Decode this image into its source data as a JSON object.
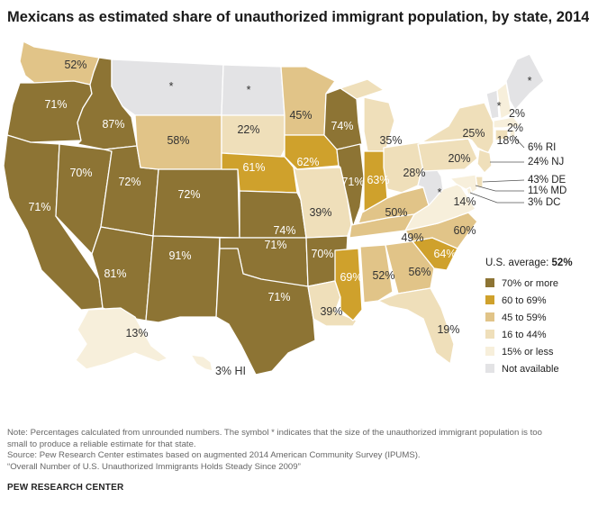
{
  "title": "Mexicans as estimated share of unauthorized immigrant population, by state, 2014",
  "colors": {
    "c70": "#8d7434",
    "c60": "#cfa12c",
    "c45": "#e1c488",
    "c16": "#efdfba",
    "c15": "#f7efdb",
    "na": "#e3e3e5"
  },
  "legend": {
    "avg_label": "U.S. average:",
    "avg_value": "52%",
    "items": [
      {
        "label": "70% or more",
        "key": "c70"
      },
      {
        "label": "60 to 69%",
        "key": "c60"
      },
      {
        "label": "45 to 59%",
        "key": "c45"
      },
      {
        "label": "16 to 44%",
        "key": "c16"
      },
      {
        "label": "15% or less",
        "key": "c15"
      },
      {
        "label": "Not available",
        "key": "na"
      }
    ]
  },
  "states": [
    {
      "abbr": "WA",
      "label": "52%",
      "bin": "c45"
    },
    {
      "abbr": "OR",
      "label": "71%",
      "bin": "c70"
    },
    {
      "abbr": "CA",
      "label": "71%",
      "bin": "c70"
    },
    {
      "abbr": "ID",
      "label": "87%",
      "bin": "c70"
    },
    {
      "abbr": "NV",
      "label": "70%",
      "bin": "c70"
    },
    {
      "abbr": "UT",
      "label": "72%",
      "bin": "c70"
    },
    {
      "abbr": "AZ",
      "label": "81%",
      "bin": "c70"
    },
    {
      "abbr": "MT",
      "label": "*",
      "bin": "na"
    },
    {
      "abbr": "WY",
      "label": "58%",
      "bin": "c45"
    },
    {
      "abbr": "CO",
      "label": "72%",
      "bin": "c70"
    },
    {
      "abbr": "NM",
      "label": "91%",
      "bin": "c70"
    },
    {
      "abbr": "ND",
      "label": "*",
      "bin": "na"
    },
    {
      "abbr": "SD",
      "label": "22%",
      "bin": "c16"
    },
    {
      "abbr": "NE",
      "label": "61%",
      "bin": "c60"
    },
    {
      "abbr": "KS",
      "label": "74%",
      "bin": "c70"
    },
    {
      "abbr": "OK",
      "label": "71%",
      "bin": "c70"
    },
    {
      "abbr": "TX",
      "label": "71%",
      "bin": "c70"
    },
    {
      "abbr": "MN",
      "label": "45%",
      "bin": "c45"
    },
    {
      "abbr": "IA",
      "label": "62%",
      "bin": "c60"
    },
    {
      "abbr": "MO",
      "label": "39%",
      "bin": "c16"
    },
    {
      "abbr": "AR",
      "label": "70%",
      "bin": "c70"
    },
    {
      "abbr": "LA",
      "label": "39%",
      "bin": "c16"
    },
    {
      "abbr": "WI",
      "label": "74%",
      "bin": "c70"
    },
    {
      "abbr": "IL",
      "label": "71%",
      "bin": "c70"
    },
    {
      "abbr": "MI",
      "label": "35%",
      "bin": "c16"
    },
    {
      "abbr": "IN",
      "label": "63%",
      "bin": "c60"
    },
    {
      "abbr": "OH",
      "label": "28%",
      "bin": "c16"
    },
    {
      "abbr": "KY",
      "label": "50%",
      "bin": "c45"
    },
    {
      "abbr": "TN",
      "label": "49%",
      "bin": "c45"
    },
    {
      "abbr": "MS",
      "label": "69%",
      "bin": "c60"
    },
    {
      "abbr": "AL",
      "label": "52%",
      "bin": "c45"
    },
    {
      "abbr": "GA",
      "label": "56%",
      "bin": "c45"
    },
    {
      "abbr": "FL",
      "label": "19%",
      "bin": "c16"
    },
    {
      "abbr": "SC",
      "label": "64%",
      "bin": "c60"
    },
    {
      "abbr": "NC",
      "label": "60%",
      "bin": "c45"
    },
    {
      "abbr": "VA",
      "label": "14%",
      "bin": "c15"
    },
    {
      "abbr": "WV",
      "label": "*",
      "bin": "na"
    },
    {
      "abbr": "PA",
      "label": "20%",
      "bin": "c16"
    },
    {
      "abbr": "NY",
      "label": "25%",
      "bin": "c16"
    },
    {
      "abbr": "VT",
      "label": "*",
      "bin": "na"
    },
    {
      "abbr": "NH",
      "label": "2%",
      "bin": "c15"
    },
    {
      "abbr": "ME",
      "label": "*",
      "bin": "na"
    },
    {
      "abbr": "MA",
      "label": "2%",
      "bin": "c15"
    },
    {
      "abbr": "CT",
      "label": "18%",
      "bin": "c16"
    },
    {
      "abbr": "AK",
      "label": "13%",
      "bin": "c15"
    },
    {
      "abbr": "HI",
      "label": "3% HI",
      "bin": "c15"
    }
  ],
  "callouts": [
    {
      "abbr": "RI",
      "label": "6% RI",
      "bin": "c15"
    },
    {
      "abbr": "NJ",
      "label": "24% NJ",
      "bin": "c16"
    },
    {
      "abbr": "DE",
      "label": "43% DE",
      "bin": "c16"
    },
    {
      "abbr": "MD",
      "label": "11% MD",
      "bin": "c15"
    },
    {
      "abbr": "DC",
      "label": "3% DC",
      "bin": "c15"
    }
  ],
  "notes": {
    "line1": "Note: Percentages calculated from unrounded numbers. The symbol * indicates that the size of the unauthorized immigrant population is too",
    "line2": "small to produce a reliable estimate for that state.",
    "line3": "Source: Pew Research Center estimates based on augmented 2014 American Community Survey (IPUMS).",
    "line4": "“Overall Number of U.S. Unauthorized Immigrants Holds Steady Since 2009”"
  },
  "brand": "PEW RESEARCH CENTER"
}
